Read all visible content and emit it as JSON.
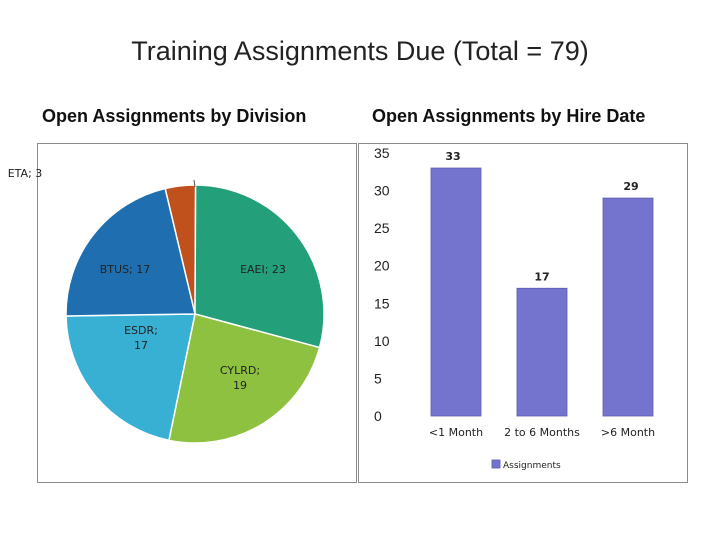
{
  "title": "Training Assignments Due (Total = 79)",
  "chart_data": [
    {
      "type": "pie",
      "title": "Open Assignments by Division",
      "slices": [
        {
          "label": "ETA; 3",
          "name": "ETA",
          "value": 3,
          "color": "#c0501c"
        },
        {
          "label": "EAEI; 23",
          "name": "EAEI",
          "value": 23,
          "color": "#23a07a"
        },
        {
          "label": "CYLRD; 19",
          "name": "CYL RD",
          "value": 19,
          "color": "#8dc13f"
        },
        {
          "label": "ESDR; 17",
          "name": "ESDR",
          "value": 17,
          "color": "#38b0d4"
        },
        {
          "label": "BTUS; 17",
          "name": "BTUS",
          "value": 17,
          "color": "#1f6fb0"
        }
      ]
    },
    {
      "type": "bar",
      "title": "Open Assignments by Hire Date",
      "categories": [
        "<1 Month",
        "2 to 6 Months",
        ">6 Month"
      ],
      "series": [
        {
          "name": "Assignments",
          "values": [
            33,
            17,
            29
          ],
          "color": "#7474cf"
        }
      ],
      "ylim": [
        0,
        35
      ],
      "yticks": [
        "35",
        "30",
        "25",
        "20",
        "15",
        "10",
        "5",
        "0"
      ],
      "legend": "bottom"
    }
  ]
}
